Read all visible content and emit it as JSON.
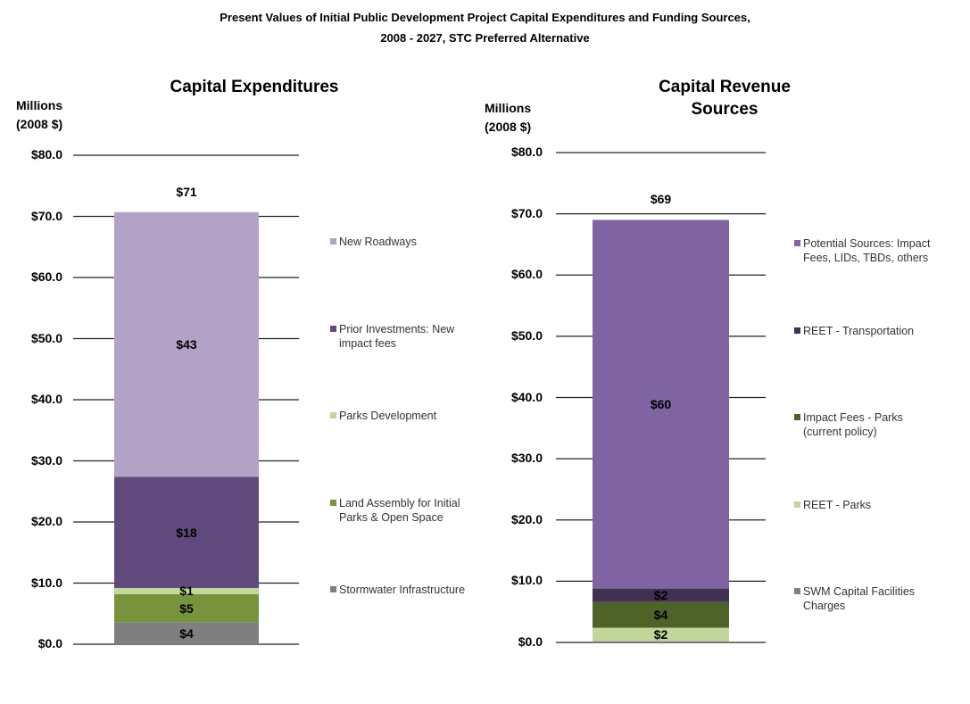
{
  "title": [
    "Present Values of Initial Public Development Project Capital Expenditures and Funding Sources,",
    "2008 - 2027, STC Preferred Alternative"
  ],
  "chart_data": [
    {
      "type": "stacked_bar",
      "title": "Capital Expenditures",
      "ylabel": "Millions (2008 $)",
      "ylim": [
        0,
        80
      ],
      "yticks": [
        {
          "value": 0,
          "label": "$0.0"
        },
        {
          "value": 10,
          "label": "$10.0"
        },
        {
          "value": 20,
          "label": "$20.0"
        },
        {
          "value": 30,
          "label": "$30.0"
        },
        {
          "value": 40,
          "label": "$40.0"
        },
        {
          "value": 50,
          "label": "$50.0"
        },
        {
          "value": 60,
          "label": "$60.0"
        },
        {
          "value": 70,
          "label": "$70.0"
        },
        {
          "value": 80,
          "label": "$80.0"
        }
      ],
      "grid": true,
      "legend": "right",
      "total_label": "$71",
      "series": [
        {
          "name": "Stormwater Infrastructure",
          "color": "#7f7f7f",
          "values": [
            3.6
          ],
          "value_labels": [
            "$4"
          ]
        },
        {
          "name": "Land Assembly for Initial Parks & Open Space",
          "color": "#77933c",
          "values": [
            4.6
          ],
          "value_labels": [
            "$5"
          ]
        },
        {
          "name": "Parks Development",
          "color": "#c3d69b",
          "values": [
            1.0
          ],
          "value_labels": [
            "$1"
          ]
        },
        {
          "name": "Prior Investments: New impact fees",
          "color": "#604a7b",
          "values": [
            18.2
          ],
          "value_labels": [
            "$18"
          ]
        },
        {
          "name": "New Roadways",
          "color": "#b3a2c7",
          "values": [
            43.3
          ],
          "value_labels": [
            "$43"
          ]
        }
      ]
    },
    {
      "type": "stacked_bar",
      "title": "Capital Revenue Sources",
      "ylabel": "Millions (2008 $)",
      "ylim": [
        0,
        80
      ],
      "yticks": [
        {
          "value": 0,
          "label": "$0.0"
        },
        {
          "value": 10,
          "label": "$10.0"
        },
        {
          "value": 20,
          "label": "$20.0"
        },
        {
          "value": 30,
          "label": "$30.0"
        },
        {
          "value": 40,
          "label": "$40.0"
        },
        {
          "value": 50,
          "label": "$50.0"
        },
        {
          "value": 60,
          "label": "$60.0"
        },
        {
          "value": 70,
          "label": "$70.0"
        },
        {
          "value": 80,
          "label": "$80.0"
        }
      ],
      "grid": true,
      "legend": "right",
      "total_label": "$69",
      "series": [
        {
          "name": "SWM Capital Facilities Charges",
          "color": "#7f7f7f",
          "values": [
            0.2
          ],
          "value_labels": [
            null
          ]
        },
        {
          "name": "REET - Parks",
          "color": "#c3d69b",
          "values": [
            2.2
          ],
          "value_labels": [
            "$2"
          ]
        },
        {
          "name": "Impact Fees - Parks (current policy)",
          "color": "#4f6228",
          "values": [
            4.2
          ],
          "value_labels": [
            "$4"
          ]
        },
        {
          "name": "REET - Transportation",
          "color": "#403152",
          "values": [
            2.2
          ],
          "value_labels": [
            "$2"
          ]
        },
        {
          "name": "Potential Sources: Impact Fees, LIDs, TBDs, others",
          "color": "#8064a2",
          "values": [
            60.2
          ],
          "value_labels": [
            "$60"
          ]
        }
      ]
    }
  ]
}
